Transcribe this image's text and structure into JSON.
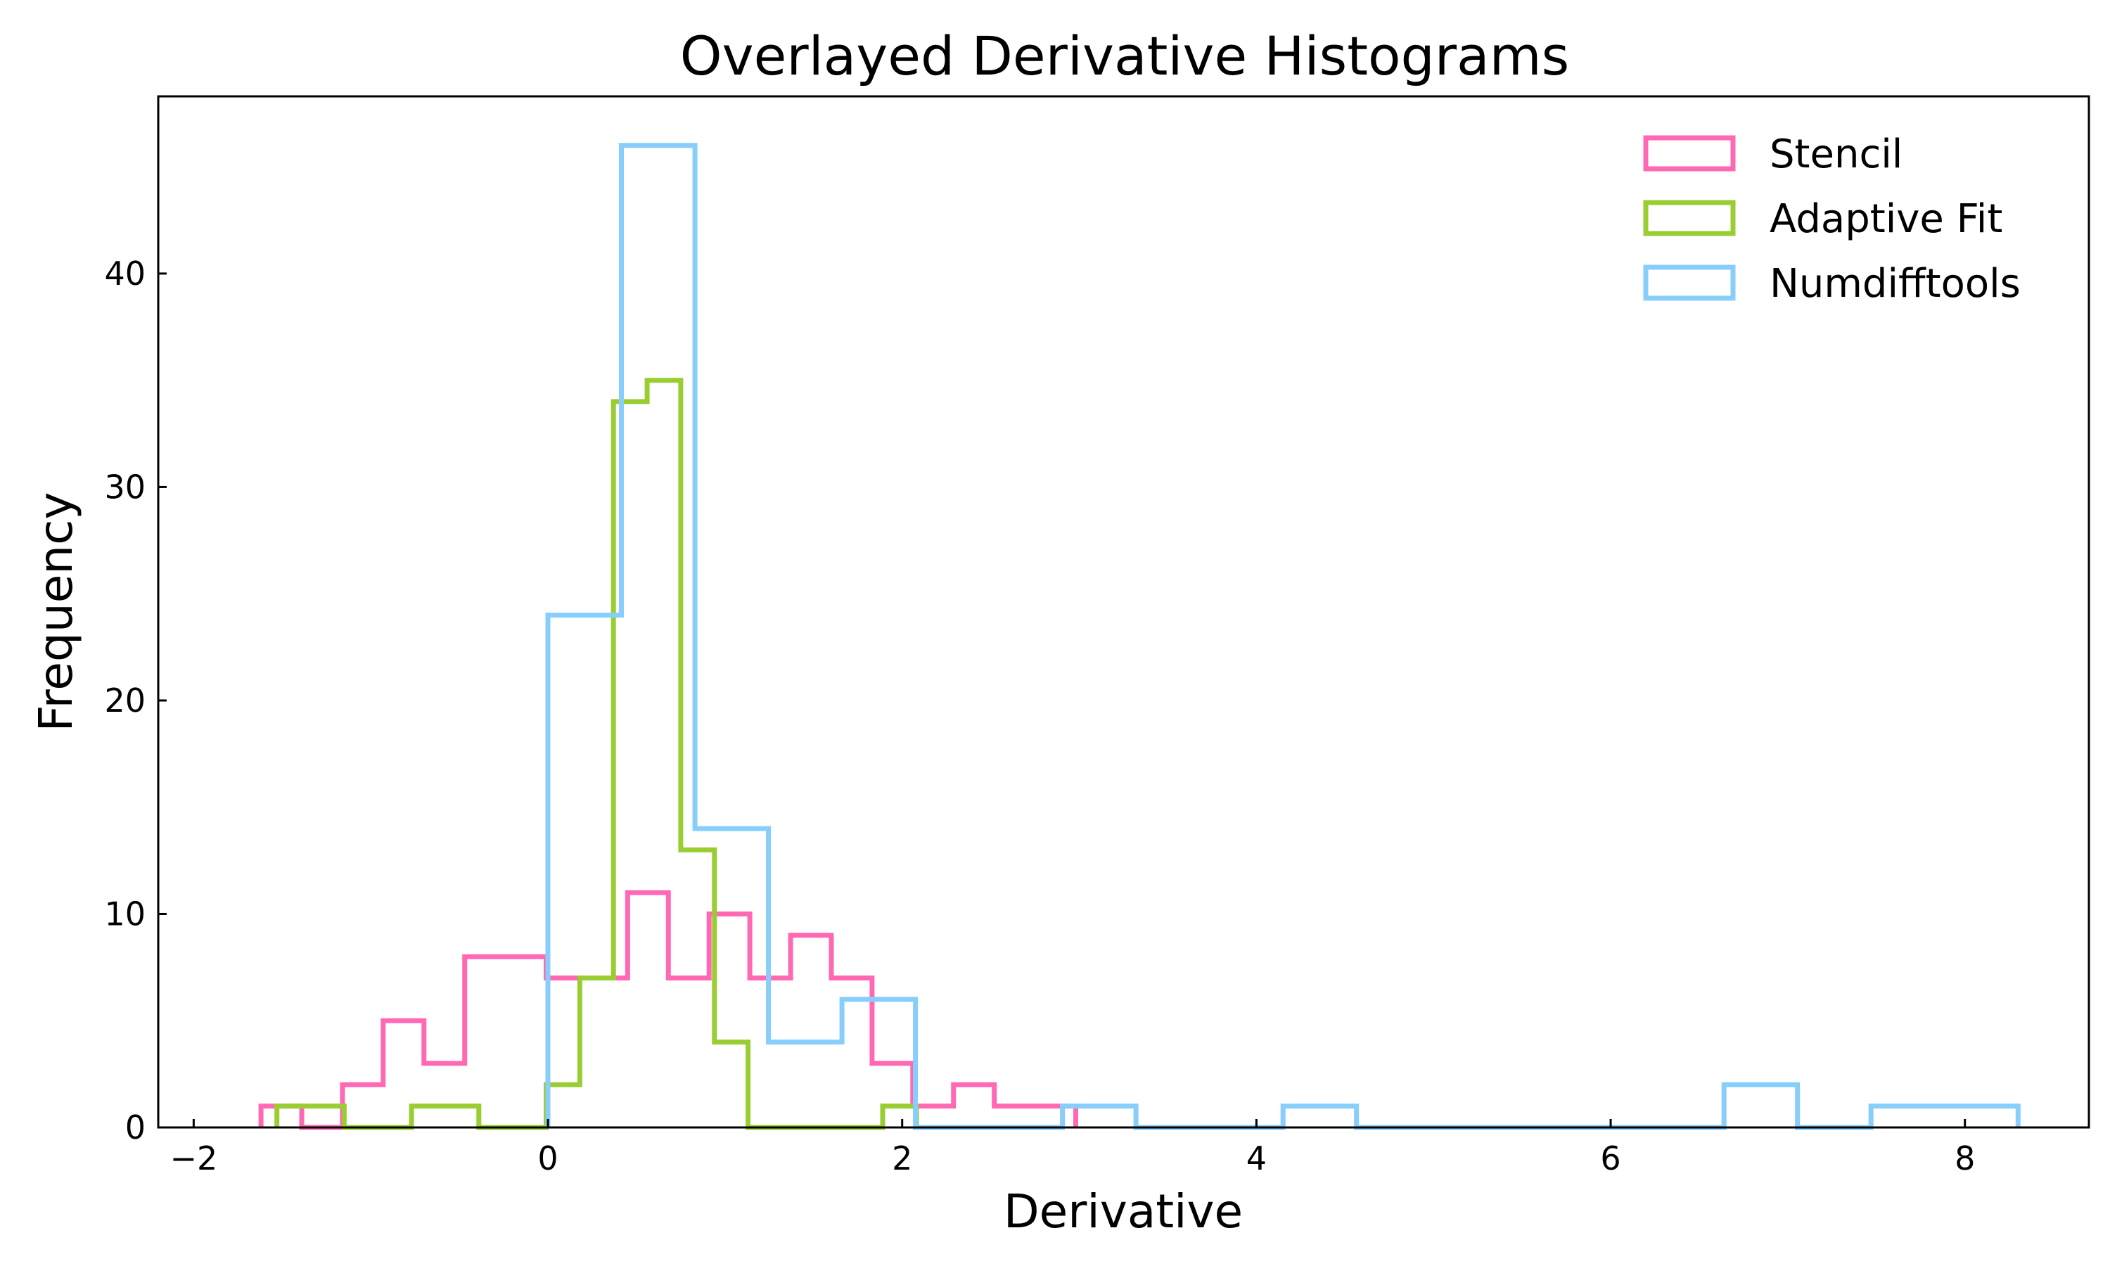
{
  "chart_data": {
    "type": "histogram",
    "title": "Overlayed Derivative Histograms",
    "xlabel": "Derivative",
    "ylabel": "Frequency",
    "xlim": [
      -2.2,
      8.7
    ],
    "ylim": [
      0,
      48.3
    ],
    "xticks": [
      -2,
      0,
      2,
      4,
      6,
      8
    ],
    "xtick_labels": [
      "−2",
      "0",
      "2",
      "4",
      "6",
      "8"
    ],
    "yticks": [
      0,
      10,
      20,
      30,
      40
    ],
    "ytick_labels": [
      "0",
      "10",
      "20",
      "30",
      "40"
    ],
    "grid": false,
    "legend_position": "top-right",
    "histtype": "step",
    "series": [
      {
        "name": "Stencil",
        "color": "#ff69b4",
        "edges": [
          -1.62,
          -1.39,
          -1.16,
          -0.93,
          -0.7,
          -0.47,
          -0.24,
          -0.01,
          0.22,
          0.45,
          0.68,
          0.91,
          1.14,
          1.37,
          1.6,
          1.83,
          2.06,
          2.29,
          2.52,
          2.75,
          2.98
        ],
        "counts": [
          1,
          0,
          2,
          5,
          3,
          8,
          8,
          7,
          7,
          11,
          7,
          10,
          7,
          9,
          7,
          3,
          1,
          2,
          1,
          1
        ]
      },
      {
        "name": "Adaptive Fit",
        "color": "#9acd32",
        "edges": [
          -1.53,
          -1.34,
          -1.15,
          -0.96,
          -0.77,
          -0.58,
          -0.39,
          -0.2,
          -0.01,
          0.18,
          0.37,
          0.56,
          0.75,
          0.94,
          1.13,
          1.32,
          1.51,
          1.7,
          1.89,
          2.08
        ],
        "counts": [
          1,
          1,
          0,
          0,
          1,
          1,
          0,
          0,
          2,
          7,
          34,
          35,
          13,
          4,
          0,
          0,
          0,
          0,
          1
        ]
      },
      {
        "name": "Numdifftools",
        "color": "#87cefa",
        "edges": [
          0.0,
          0.415,
          0.83,
          1.245,
          1.66,
          2.075,
          2.49,
          2.905,
          3.32,
          3.735,
          4.15,
          4.565,
          4.98,
          5.395,
          5.81,
          6.225,
          6.64,
          7.055,
          7.47,
          7.885,
          8.3
        ],
        "counts": [
          24,
          46,
          14,
          4,
          6,
          0,
          0,
          1,
          0,
          0,
          1,
          0,
          0,
          0,
          0,
          0,
          2,
          0,
          1,
          1
        ]
      }
    ]
  }
}
